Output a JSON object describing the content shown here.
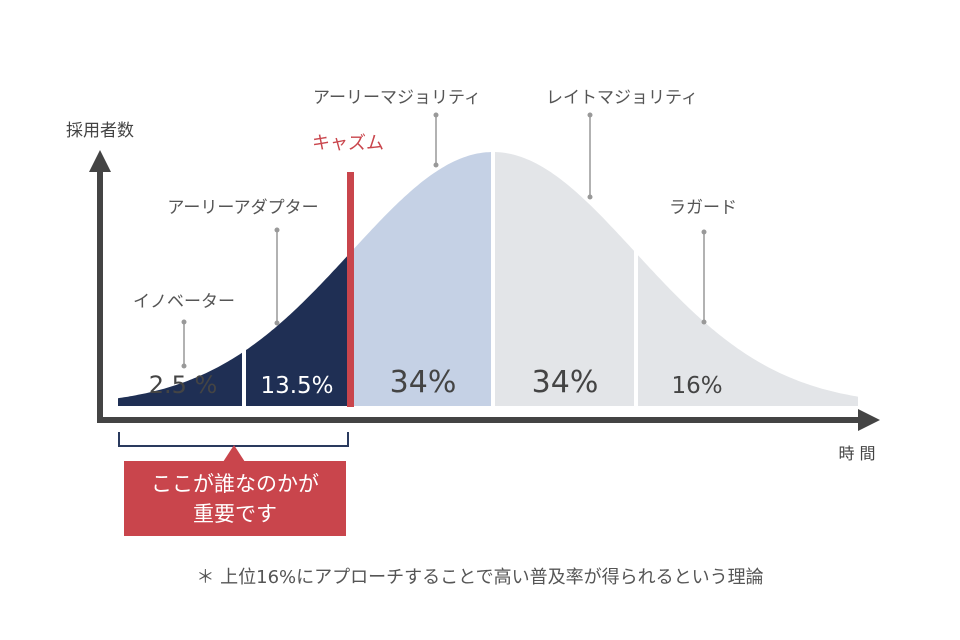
{
  "diagram": {
    "y_axis_label": "採用者数",
    "x_axis_label": "時 間",
    "segments": [
      {
        "name": "イノベーター",
        "percent": 2.5,
        "label": "2.5 %",
        "color": "#1f2f54"
      },
      {
        "name": "アーリーアダプター",
        "percent": 13.5,
        "label": "13.5%",
        "color": "#1f2f54"
      },
      {
        "name": "アーリーマジョリティ",
        "percent": 34,
        "label": "34%",
        "color": "#c5d1e5"
      },
      {
        "name": "レイトマジョリティ",
        "percent": 34,
        "label": "34%",
        "color": "#e3e5e8"
      },
      {
        "name": "ラガード",
        "percent": 16,
        "label": "16%",
        "color": "#e3e5e8"
      }
    ],
    "chasm_label": "キャズム",
    "chasm_color": "#c9454c"
  },
  "callout": {
    "line1": "ここが誰なのかが",
    "line2": "重要です"
  },
  "footnote": "＊ 上位16%にアプローチすることで高い普及率が得られるという理論"
}
